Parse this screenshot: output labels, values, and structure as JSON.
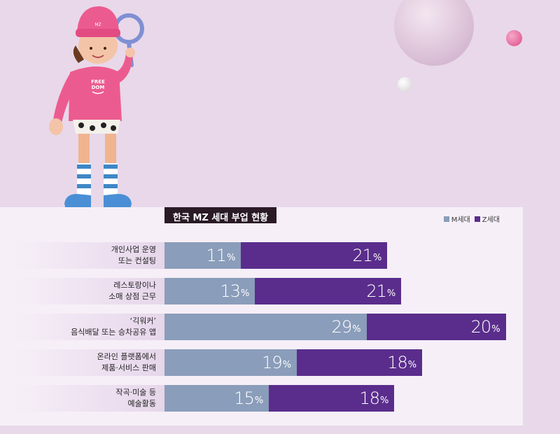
{
  "chart_data": {
    "type": "bar",
    "title": "한국 MZ 세대 부업 현황",
    "legend": [
      "M세대",
      "Z세대"
    ],
    "legend_placement": "top-right",
    "colors": {
      "M": "#8a9dba",
      "Z": "#5a2d8c"
    },
    "categories": [
      [
        "개인사업 운영",
        "또는 컨설팅"
      ],
      [
        "레스토랑이나",
        "소매 상점 근무"
      ],
      [
        "‘긱워커’",
        "음식배달 또는 승차공유 앱"
      ],
      [
        "온라인 플랫폼에서",
        "제품·서비스 판매"
      ],
      [
        "작곡·미술 등",
        "예술활동"
      ]
    ],
    "series": [
      {
        "name": "M세대",
        "values": [
          11,
          13,
          29,
          19,
          15
        ]
      },
      {
        "name": "Z세대",
        "values": [
          21,
          21,
          20,
          18,
          18
        ]
      }
    ],
    "unit": "%"
  },
  "illustration": {
    "hat_text": "MZ",
    "shirt_text_1": "FREE",
    "shirt_text_2": "DOM"
  }
}
